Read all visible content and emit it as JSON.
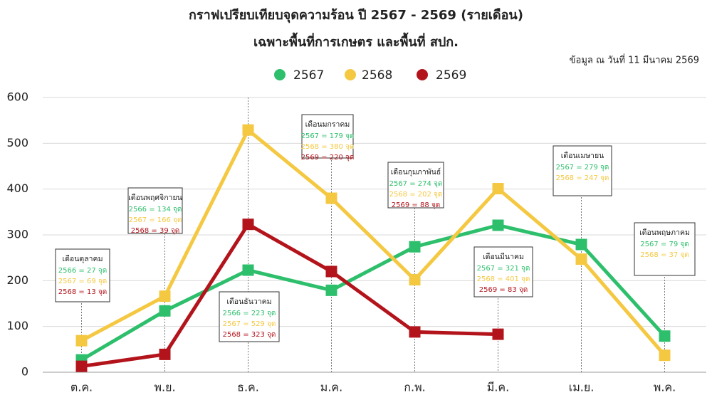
{
  "chart_data": {
    "type": "line",
    "title": "กราฟเปรียบเทียบจุดความร้อน ปี 2567 - 2569 (รายเดือน)",
    "subtitle": "เฉพาะพื้นที่การเกษตร และพื้นที่ สปก.",
    "note": "ข้อมูล ณ วันที่ 11 มีนาคม 2569",
    "categories": [
      "ต.ค.",
      "พ.ย.",
      "ธ.ค.",
      "ม.ค.",
      "ก.พ.",
      "มี.ค.",
      "เม.ย.",
      "พ.ค."
    ],
    "series": [
      {
        "name": "2567",
        "color": "#2dbf6c",
        "values": [
          27,
          134,
          223,
          179,
          274,
          321,
          279,
          79
        ]
      },
      {
        "name": "2568",
        "color": "#f5c842",
        "values": [
          69,
          166,
          529,
          380,
          202,
          401,
          247,
          37
        ]
      },
      {
        "name": "2569",
        "color": "#b3141b",
        "values": [
          13,
          39,
          323,
          220,
          88,
          83,
          null,
          null
        ]
      }
    ],
    "ylim": [
      0,
      600
    ],
    "yticks": [
      0,
      100,
      200,
      300,
      400,
      500,
      600
    ],
    "grid": true,
    "annotations": [
      {
        "title": "เดือนตุลาคม",
        "lines": [
          "2566 = 27 จุด",
          "2567 = 69 จุด",
          "2568 = 13 จุด"
        ]
      },
      {
        "title": "เดือนพฤศจิกายน",
        "lines": [
          "2566 = 134 จุด",
          "2567 = 166 จุด",
          "2568 = 39 จุด"
        ]
      },
      {
        "title": "เดือนธันวาคม",
        "lines": [
          "2566 = 223 จุด",
          "2567 = 529 จุด",
          "2568 = 323 จุด"
        ]
      },
      {
        "title": "เดือนมกราคม",
        "lines": [
          "2567 = 179 จุด",
          "2568 = 380 จุด",
          "2569 = 220 จุด"
        ]
      },
      {
        "title": "เดือนกุมภาพันธ์",
        "lines": [
          "2567 = 274 จุด",
          "2568 = 202 จุด",
          "2569 = 88 จุด"
        ]
      },
      {
        "title": "เดือนมีนาคม",
        "lines": [
          "2567 = 321 จุด",
          "2568 = 401 จุด",
          "2569 = 83 จุด"
        ]
      },
      {
        "title": "เดือนเมษายน",
        "lines": [
          "2567 = 279 จุด",
          "2568 = 247 จุด"
        ]
      },
      {
        "title": "เดือนพฤษภาคม",
        "lines": [
          "2567 = 79 จุด",
          "2568 = 37 จุด"
        ]
      }
    ]
  }
}
